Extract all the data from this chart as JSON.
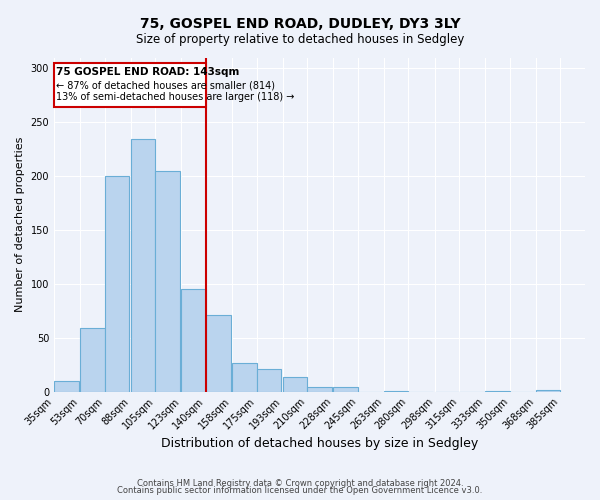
{
  "title": "75, GOSPEL END ROAD, DUDLEY, DY3 3LY",
  "subtitle": "Size of property relative to detached houses in Sedgley",
  "xlabel": "Distribution of detached houses by size in Sedgley",
  "ylabel": "Number of detached properties",
  "bin_labels": [
    "35sqm",
    "53sqm",
    "70sqm",
    "88sqm",
    "105sqm",
    "123sqm",
    "140sqm",
    "158sqm",
    "175sqm",
    "193sqm",
    "210sqm",
    "228sqm",
    "245sqm",
    "263sqm",
    "280sqm",
    "298sqm",
    "315sqm",
    "333sqm",
    "350sqm",
    "368sqm",
    "385sqm"
  ],
  "bin_edges": [
    35,
    53,
    70,
    88,
    105,
    123,
    140,
    158,
    175,
    193,
    210,
    228,
    245,
    263,
    280,
    298,
    315,
    333,
    350,
    368,
    385
  ],
  "bin_width": 17,
  "bar_heights": [
    10,
    59,
    200,
    234,
    205,
    95,
    71,
    27,
    21,
    14,
    4,
    4,
    0,
    1,
    0,
    0,
    0,
    1,
    0,
    2
  ],
  "bar_color": "#bad4ee",
  "bar_edge_color": "#6aaed6",
  "vline_x": 140,
  "vline_color": "#cc0000",
  "annotation_title": "75 GOSPEL END ROAD: 143sqm",
  "annotation_line1": "← 87% of detached houses are smaller (814)",
  "annotation_line2": "13% of semi-detached houses are larger (118) →",
  "annotation_box_color": "#cc0000",
  "ylim": [
    0,
    310
  ],
  "yticks": [
    0,
    50,
    100,
    150,
    200,
    250,
    300
  ],
  "footer1": "Contains HM Land Registry data © Crown copyright and database right 2024.",
  "footer2": "Contains public sector information licensed under the Open Government Licence v3.0.",
  "background_color": "#eef2fa",
  "grid_color": "#ffffff",
  "plot_bg_color": "#eef2fa"
}
